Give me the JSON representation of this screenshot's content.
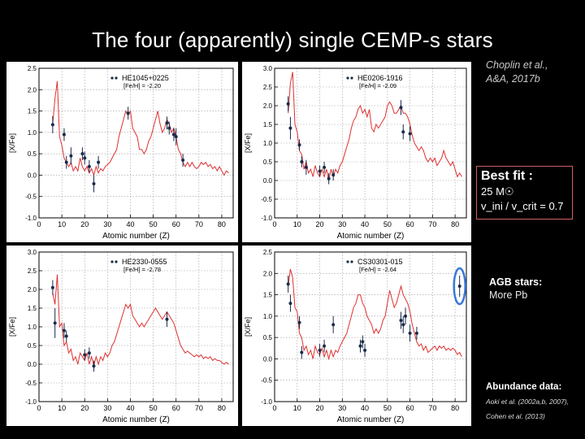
{
  "title": "The four (apparently) single CEMP-s stars",
  "reference": {
    "line1": "Choplin et al.,",
    "line2": "A&A, 2017b"
  },
  "best_fit": {
    "heading": "Best fit :",
    "mass": "25 M☉",
    "velocity": "v_ini / v_crit = 0.7"
  },
  "agb_note": {
    "heading": "AGB stars:",
    "text": "More Pb"
  },
  "abundance_note": {
    "heading": "Abundance data:",
    "line1": "Aoki et al. (2002a,b, 2007),",
    "line2": "Cohen et al. (2013)"
  },
  "colors": {
    "model_line": "#e03030",
    "data_points": "#1a2b4a",
    "highlight": "#3a78d8",
    "grid": "#9a9a9a"
  },
  "chart_data": [
    {
      "type": "line",
      "star": "HE1045+0225",
      "feh_label": "[Fe/H] = -2.20",
      "xlabel": "Atomic number (Z)",
      "ylabel": "[X/Fe]",
      "xlim": [
        0,
        85
      ],
      "ylim": [
        -1.0,
        2.5
      ],
      "xticks": [
        0,
        10,
        20,
        30,
        40,
        50,
        60,
        70,
        80
      ],
      "yticks": [
        -1.0,
        -0.5,
        0.0,
        0.5,
        1.0,
        1.5,
        2.0,
        2.5
      ],
      "highlight_pb": false,
      "model_x": [
        6,
        7,
        8,
        9,
        10,
        11,
        12,
        13,
        14,
        15,
        16,
        17,
        18,
        19,
        20,
        21,
        22,
        23,
        24,
        25,
        26,
        27,
        28,
        29,
        30,
        31,
        32,
        33,
        34,
        35,
        36,
        37,
        38,
        39,
        40,
        41,
        42,
        43,
        44,
        45,
        46,
        47,
        48,
        49,
        50,
        51,
        52,
        53,
        54,
        55,
        56,
        57,
        58,
        59,
        60,
        61,
        62,
        63,
        64,
        65,
        66,
        67,
        68,
        69,
        70,
        71,
        72,
        73,
        74,
        75,
        76,
        77,
        78,
        79,
        80,
        81,
        82,
        83
      ],
      "model_y": [
        1.2,
        1.8,
        2.2,
        0.9,
        0.7,
        0.4,
        0.3,
        0.2,
        0.3,
        0.1,
        0.2,
        0.1,
        0.4,
        0.2,
        0.1,
        0.2,
        0.05,
        0.15,
        0.0,
        0.2,
        0.05,
        0.15,
        0.1,
        0.2,
        0.25,
        0.3,
        0.4,
        0.5,
        0.6,
        0.9,
        1.1,
        1.3,
        1.5,
        1.4,
        1.5,
        1.1,
        1.0,
        0.9,
        0.6,
        0.6,
        0.5,
        0.6,
        0.8,
        0.9,
        1.1,
        1.3,
        1.5,
        1.2,
        1.0,
        1.1,
        1.3,
        1.2,
        1.0,
        1.1,
        0.9,
        0.6,
        0.5,
        0.3,
        0.2,
        0.3,
        0.2,
        0.3,
        0.2,
        0.15,
        0.2,
        0.3,
        0.25,
        0.3,
        0.2,
        0.25,
        0.15,
        0.2,
        0.1,
        0.2,
        0.1,
        0.0,
        0.1,
        0.05
      ],
      "obs": [
        {
          "z": 6,
          "y": 1.18,
          "e": 0.2
        },
        {
          "z": 11,
          "y": 0.95,
          "e": 0.15
        },
        {
          "z": 12,
          "y": 0.3,
          "e": 0.15
        },
        {
          "z": 14,
          "y": 0.45,
          "e": 0.2
        },
        {
          "z": 19,
          "y": 0.5,
          "e": 0.15
        },
        {
          "z": 20,
          "y": 0.4,
          "e": 0.15
        },
        {
          "z": 22,
          "y": 0.2,
          "e": 0.15
        },
        {
          "z": 24,
          "y": -0.2,
          "e": 0.2
        },
        {
          "z": 26,
          "y": 0.3,
          "e": 0.15
        },
        {
          "z": 39,
          "y": 1.45,
          "e": 0.15
        },
        {
          "z": 56,
          "y": 1.22,
          "e": 0.15
        },
        {
          "z": 57,
          "y": 1.1,
          "e": 0.15
        },
        {
          "z": 59,
          "y": 0.95,
          "e": 0.15
        },
        {
          "z": 60,
          "y": 0.9,
          "e": 0.2
        },
        {
          "z": 63,
          "y": 0.35,
          "e": 0.15
        }
      ]
    },
    {
      "type": "line",
      "star": "HE0206-1916",
      "feh_label": "[Fe/H] = -2.09",
      "xlabel": "Atomic number (Z)",
      "ylabel": "[X/Fe]",
      "xlim": [
        0,
        85
      ],
      "ylim": [
        -1.0,
        3.0
      ],
      "xticks": [
        0,
        10,
        20,
        30,
        40,
        50,
        60,
        70,
        80
      ],
      "yticks": [
        -1.0,
        -0.5,
        0.0,
        0.5,
        1.0,
        1.5,
        2.0,
        2.5,
        3.0
      ],
      "highlight_pb": false,
      "model_x": [
        6,
        7,
        8,
        9,
        10,
        11,
        12,
        13,
        14,
        15,
        16,
        17,
        18,
        19,
        20,
        21,
        22,
        23,
        24,
        25,
        26,
        27,
        28,
        29,
        30,
        31,
        32,
        33,
        34,
        35,
        36,
        37,
        38,
        39,
        40,
        41,
        42,
        43,
        44,
        45,
        46,
        47,
        48,
        49,
        50,
        51,
        52,
        53,
        54,
        55,
        56,
        57,
        58,
        59,
        60,
        61,
        62,
        63,
        64,
        65,
        66,
        67,
        68,
        69,
        70,
        71,
        72,
        73,
        74,
        75,
        76,
        77,
        78,
        79,
        80,
        81,
        82,
        83
      ],
      "model_y": [
        1.8,
        2.6,
        2.9,
        1.5,
        1.3,
        0.8,
        0.7,
        0.3,
        0.5,
        0.2,
        0.3,
        0.1,
        0.4,
        0.2,
        0.1,
        0.3,
        0.1,
        0.3,
        0.0,
        0.3,
        0.1,
        0.3,
        0.2,
        0.4,
        0.5,
        0.7,
        0.9,
        1.1,
        1.4,
        1.6,
        1.7,
        1.9,
        2.0,
        1.8,
        1.9,
        1.7,
        1.9,
        1.4,
        1.3,
        1.5,
        1.4,
        1.5,
        1.6,
        1.7,
        2.0,
        2.1,
        2.0,
        1.8,
        1.8,
        1.9,
        2.0,
        1.8,
        1.8,
        1.7,
        1.5,
        1.2,
        1.0,
        0.9,
        0.8,
        0.9,
        0.8,
        0.6,
        0.5,
        0.6,
        0.5,
        0.6,
        0.4,
        0.5,
        0.6,
        0.8,
        0.6,
        0.5,
        0.4,
        0.5,
        0.3,
        0.1,
        0.2,
        0.1
      ],
      "obs": [
        {
          "z": 6,
          "y": 2.05,
          "e": 0.2
        },
        {
          "z": 7,
          "y": 1.4,
          "e": 0.3
        },
        {
          "z": 11,
          "y": 0.95,
          "e": 0.15
        },
        {
          "z": 12,
          "y": 0.5,
          "e": 0.15
        },
        {
          "z": 14,
          "y": 0.35,
          "e": 0.2
        },
        {
          "z": 20,
          "y": 0.25,
          "e": 0.15
        },
        {
          "z": 22,
          "y": 0.35,
          "e": 0.15
        },
        {
          "z": 24,
          "y": 0.05,
          "e": 0.15
        },
        {
          "z": 26,
          "y": 0.15,
          "e": 0.15
        },
        {
          "z": 56,
          "y": 1.95,
          "e": 0.2
        },
        {
          "z": 57,
          "y": 1.3,
          "e": 0.2
        },
        {
          "z": 60,
          "y": 1.25,
          "e": 0.2
        }
      ]
    },
    {
      "type": "line",
      "star": "HE2330-0555",
      "feh_label": "[Fe/H] = -2.78",
      "xlabel": "Atomic number (Z)",
      "ylabel": "[X/Fe]",
      "xlim": [
        0,
        85
      ],
      "ylim": [
        -1.0,
        3.0
      ],
      "xticks": [
        0,
        10,
        20,
        30,
        40,
        50,
        60,
        70,
        80
      ],
      "yticks": [
        -1.0,
        -0.5,
        0.0,
        0.5,
        1.0,
        1.5,
        2.0,
        2.5,
        3.0
      ],
      "highlight_pb": false,
      "model_x": [
        6,
        7,
        8,
        9,
        10,
        11,
        12,
        13,
        14,
        15,
        16,
        17,
        18,
        19,
        20,
        21,
        22,
        23,
        24,
        25,
        26,
        27,
        28,
        29,
        30,
        31,
        32,
        33,
        34,
        35,
        36,
        37,
        38,
        39,
        40,
        41,
        42,
        43,
        44,
        45,
        46,
        47,
        48,
        49,
        50,
        51,
        52,
        53,
        54,
        55,
        56,
        57,
        58,
        59,
        60,
        61,
        62,
        63,
        64,
        65,
        66,
        67,
        68,
        69,
        70,
        71,
        72,
        73,
        74,
        75,
        76,
        77,
        78,
        79,
        80,
        81,
        82,
        83
      ],
      "model_y": [
        1.9,
        1.6,
        2.4,
        1.0,
        1.1,
        0.5,
        0.6,
        0.3,
        0.4,
        0.1,
        0.2,
        0.0,
        0.3,
        0.2,
        0.1,
        0.3,
        0.0,
        0.2,
        -0.05,
        0.2,
        0.0,
        0.2,
        0.1,
        0.3,
        0.2,
        0.3,
        0.5,
        0.6,
        0.8,
        1.0,
        1.2,
        1.4,
        1.6,
        1.5,
        1.6,
        1.3,
        1.2,
        1.1,
        1.0,
        1.1,
        1.0,
        1.1,
        1.2,
        1.3,
        1.4,
        1.5,
        1.4,
        1.3,
        1.2,
        1.3,
        1.4,
        1.3,
        1.2,
        1.1,
        0.9,
        0.7,
        0.5,
        0.4,
        0.3,
        0.35,
        0.3,
        0.25,
        0.2,
        0.25,
        0.2,
        0.25,
        0.15,
        0.2,
        0.15,
        0.2,
        0.1,
        0.15,
        0.1,
        0.1,
        0.05,
        0.0,
        0.05,
        0.0
      ],
      "obs": [
        {
          "z": 6,
          "y": 2.05,
          "e": 0.2
        },
        {
          "z": 7,
          "y": 1.1,
          "e": 0.4
        },
        {
          "z": 11,
          "y": 0.9,
          "e": 0.2
        },
        {
          "z": 12,
          "y": 0.75,
          "e": 0.15
        },
        {
          "z": 20,
          "y": 0.25,
          "e": 0.15
        },
        {
          "z": 22,
          "y": 0.3,
          "e": 0.15
        },
        {
          "z": 24,
          "y": -0.05,
          "e": 0.15
        },
        {
          "z": 56,
          "y": 1.2,
          "e": 0.2
        }
      ]
    },
    {
      "type": "line",
      "star": "CS30301-015",
      "feh_label": "[Fe/H] = -2.64",
      "xlabel": "Atomic number (Z)",
      "ylabel": "[X/Fe]",
      "xlim": [
        0,
        85
      ],
      "ylim": [
        -1.0,
        2.5
      ],
      "xticks": [
        0,
        10,
        20,
        30,
        40,
        50,
        60,
        70,
        80
      ],
      "yticks": [
        -1.0,
        -0.5,
        0.0,
        0.5,
        1.0,
        1.5,
        2.0,
        2.5
      ],
      "highlight_pb": true,
      "model_x": [
        6,
        7,
        8,
        9,
        10,
        11,
        12,
        13,
        14,
        15,
        16,
        17,
        18,
        19,
        20,
        21,
        22,
        23,
        24,
        25,
        26,
        27,
        28,
        29,
        30,
        31,
        32,
        33,
        34,
        35,
        36,
        37,
        38,
        39,
        40,
        41,
        42,
        43,
        44,
        45,
        46,
        47,
        48,
        49,
        50,
        51,
        52,
        53,
        54,
        55,
        56,
        57,
        58,
        59,
        60,
        61,
        62,
        63,
        64,
        65,
        66,
        67,
        68,
        69,
        70,
        71,
        72,
        73,
        74,
        75,
        76,
        77,
        78,
        79,
        80,
        81,
        82,
        83
      ],
      "model_y": [
        1.7,
        2.1,
        1.9,
        1.2,
        1.1,
        0.6,
        0.5,
        0.2,
        0.3,
        0.1,
        0.2,
        0.0,
        0.3,
        0.15,
        0.1,
        0.25,
        0.05,
        0.2,
        0.0,
        0.2,
        0.05,
        0.2,
        0.15,
        0.3,
        0.4,
        0.5,
        0.6,
        0.8,
        1.0,
        1.2,
        1.3,
        1.5,
        1.5,
        1.3,
        1.2,
        1.0,
        0.9,
        0.8,
        0.6,
        0.7,
        0.6,
        0.7,
        0.9,
        1.0,
        1.3,
        1.6,
        1.4,
        1.2,
        1.3,
        1.5,
        1.7,
        1.5,
        1.4,
        1.3,
        1.1,
        0.8,
        0.6,
        0.4,
        0.3,
        0.35,
        0.2,
        0.3,
        0.15,
        0.2,
        0.25,
        0.3,
        0.2,
        0.3,
        0.25,
        0.3,
        0.2,
        0.25,
        0.2,
        0.25,
        0.2,
        0.1,
        0.15,
        0.05
      ],
      "obs": [
        {
          "z": 6,
          "y": 1.75,
          "e": 0.2
        },
        {
          "z": 7,
          "y": 1.3,
          "e": 0.2
        },
        {
          "z": 11,
          "y": 0.85,
          "e": 0.15
        },
        {
          "z": 12,
          "y": 0.15,
          "e": 0.15
        },
        {
          "z": 20,
          "y": 0.2,
          "e": 0.15
        },
        {
          "z": 22,
          "y": 0.3,
          "e": 0.15
        },
        {
          "z": 26,
          "y": 0.8,
          "e": 0.2
        },
        {
          "z": 38,
          "y": 0.3,
          "e": 0.15
        },
        {
          "z": 39,
          "y": 0.4,
          "e": 0.15
        },
        {
          "z": 40,
          "y": 0.2,
          "e": 0.15
        },
        {
          "z": 56,
          "y": 0.9,
          "e": 0.2
        },
        {
          "z": 57,
          "y": 0.8,
          "e": 0.2
        },
        {
          "z": 58,
          "y": 1.0,
          "e": 0.2
        },
        {
          "z": 60,
          "y": 0.6,
          "e": 0.2
        },
        {
          "z": 63,
          "y": 0.6,
          "e": 0.15
        },
        {
          "z": 82,
          "y": 1.7,
          "e": 0.25
        }
      ]
    }
  ]
}
